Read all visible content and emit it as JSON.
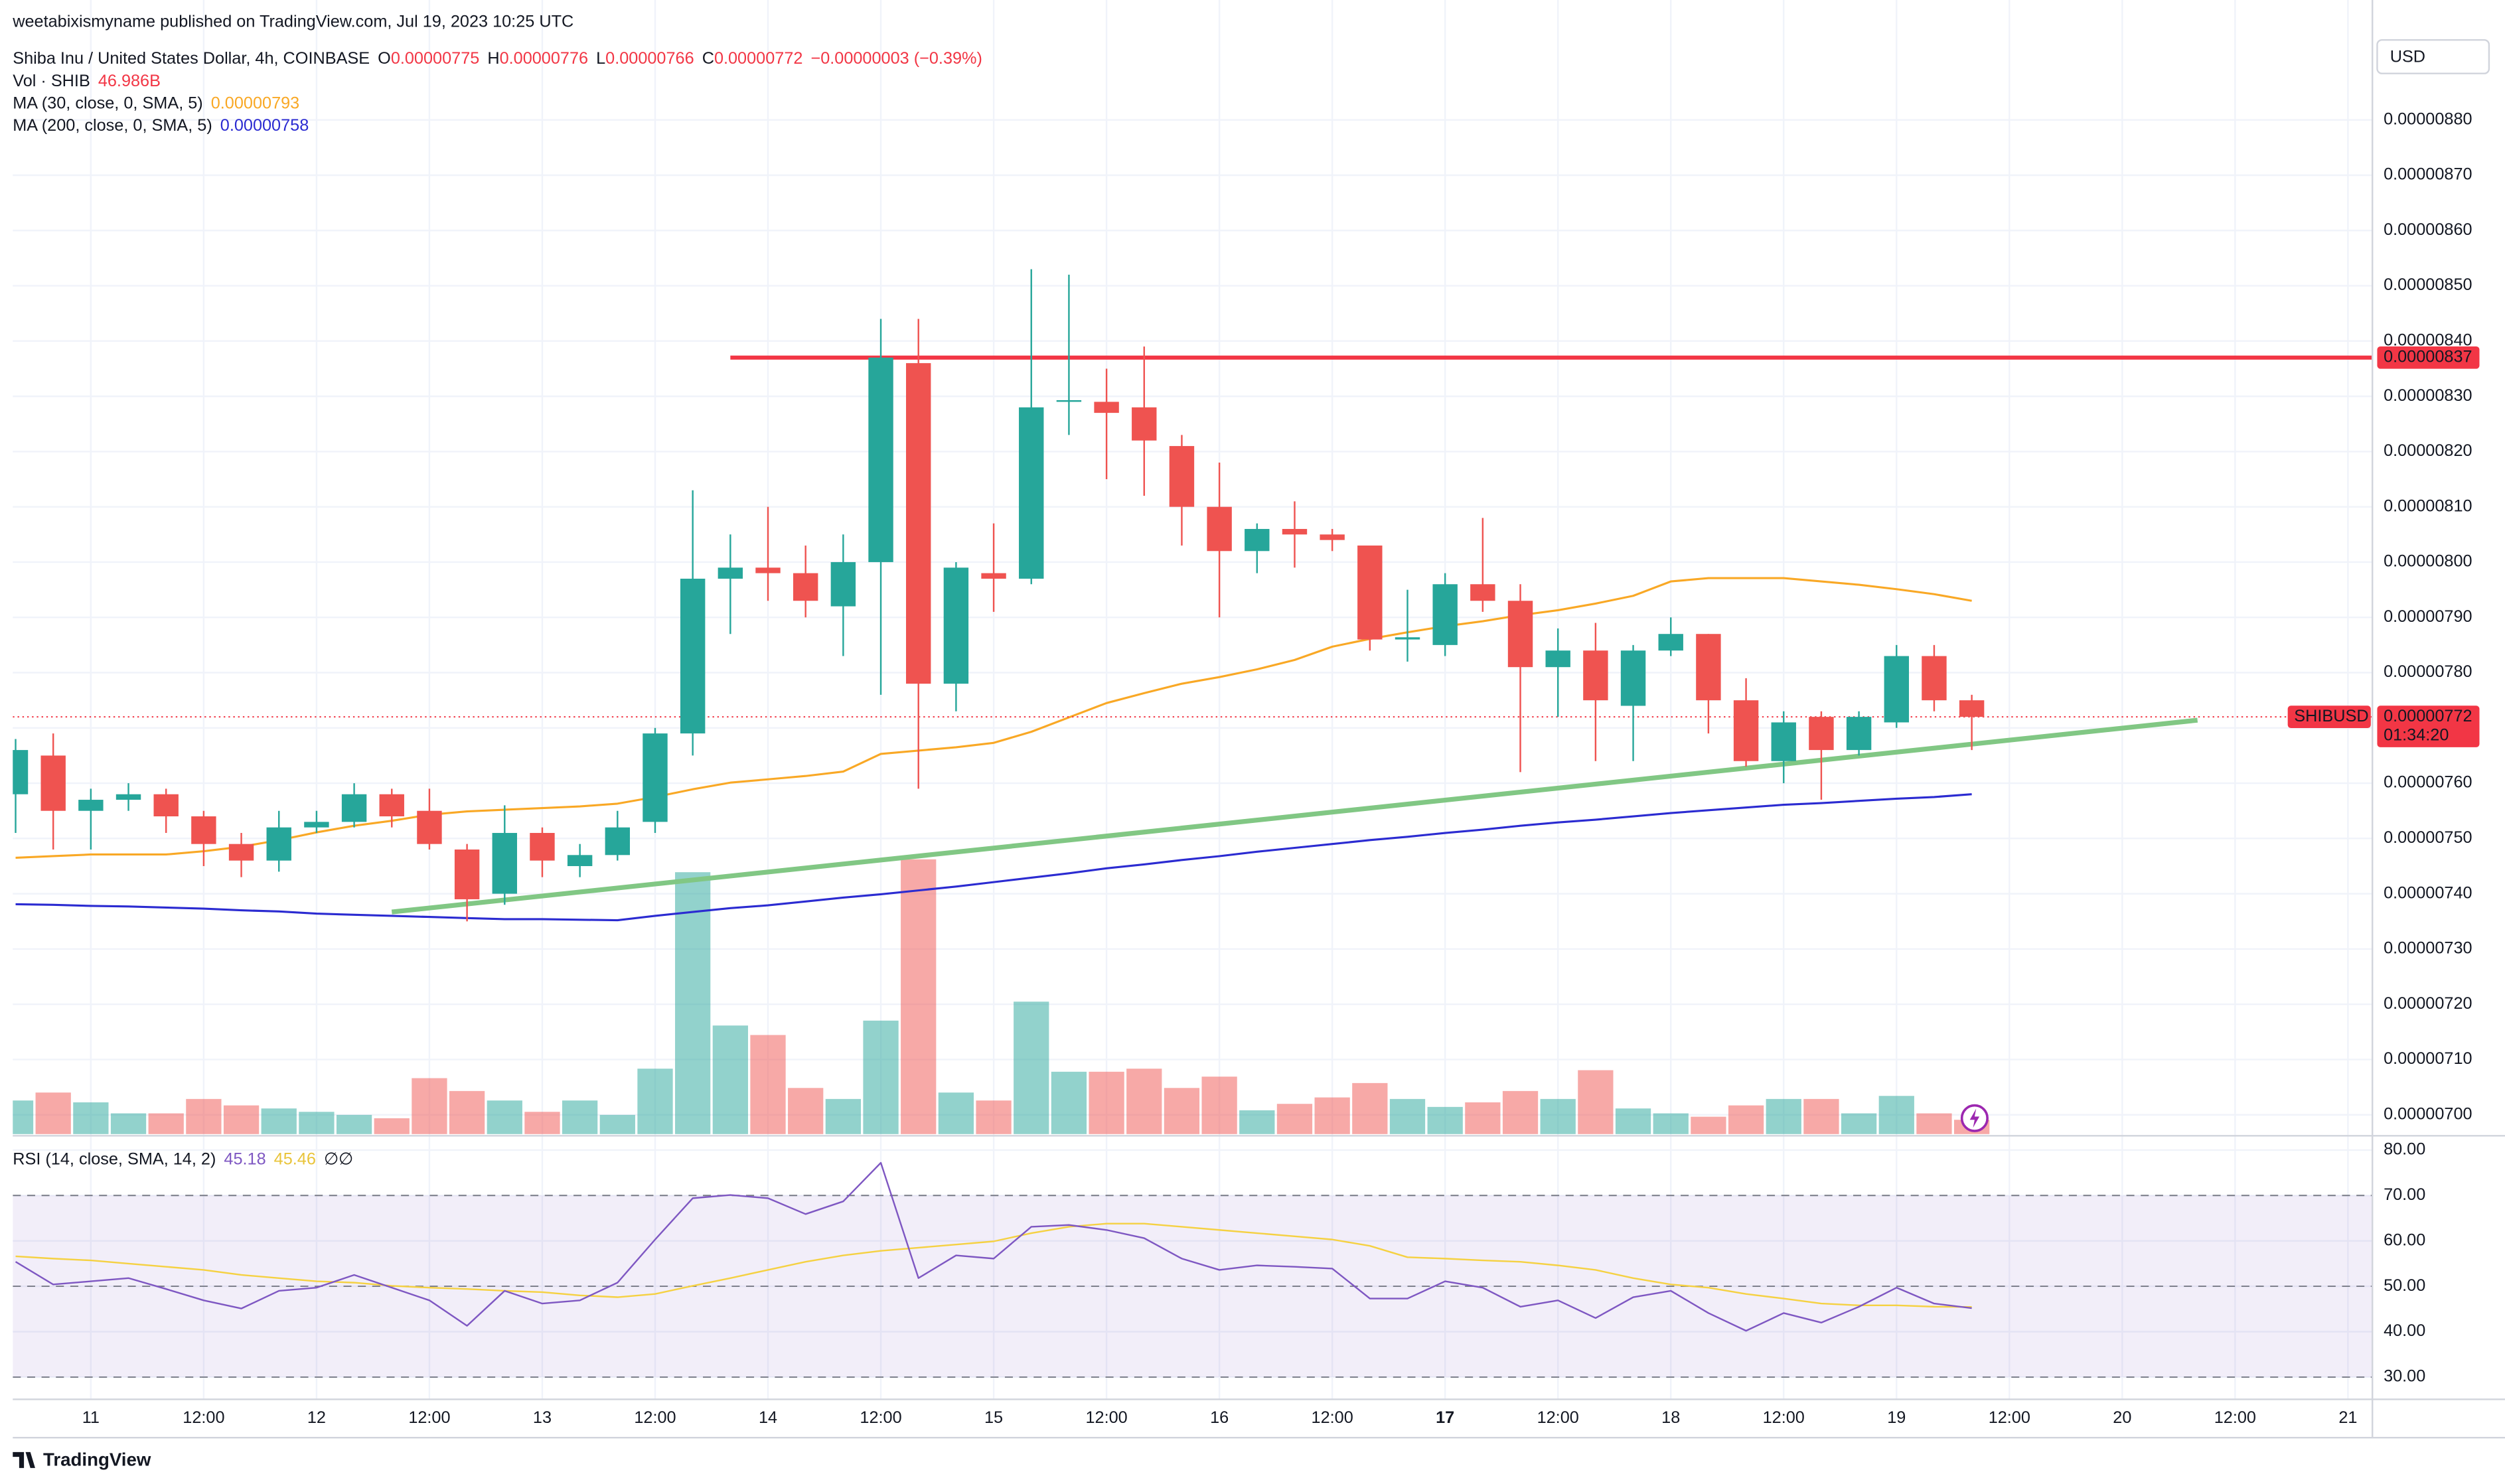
{
  "header": {
    "published": "weetabixismyname published on TradingView.com, Jul 19, 2023 10:25 UTC",
    "currency": "USD",
    "logo": "TradingView"
  },
  "chart_data": {
    "type": "candlestick",
    "legend": [
      [
        {
          "text": "Shiba Inu / United States Dollar, 4h, COINBASE",
          "color": "#131722"
        },
        {
          "text": "O",
          "color": "#131722"
        },
        {
          "text": "0.00000775",
          "color": "#f23645"
        },
        {
          "text": "H",
          "color": "#131722"
        },
        {
          "text": "0.00000776",
          "color": "#f23645"
        },
        {
          "text": "L",
          "color": "#131722"
        },
        {
          "text": "0.00000766",
          "color": "#f23645"
        },
        {
          "text": "C",
          "color": "#131722"
        },
        {
          "text": "0.00000772",
          "color": "#f23645"
        },
        {
          "text": "−0.00000003 (−0.39%)",
          "color": "#f23645"
        }
      ],
      [
        {
          "text": "Vol · SHIB",
          "color": "#131722"
        },
        {
          "text": "46.986B",
          "color": "#f23645"
        }
      ],
      [
        {
          "text": "MA (30, close, 0, SMA, 5)",
          "color": "#131722"
        },
        {
          "text": "0.00000793",
          "color": "#f9a825"
        }
      ],
      [
        {
          "text": "MA (200, close, 0, SMA, 5)",
          "color": "#131722"
        },
        {
          "text": "0.00000758",
          "color": "#2b2bd1"
        }
      ]
    ],
    "x": [
      -8,
      -4,
      0,
      4,
      8,
      12,
      16,
      20,
      24,
      28,
      32,
      36,
      40,
      44,
      48,
      52,
      56,
      60,
      64,
      68,
      72,
      76,
      80,
      84,
      88,
      92,
      96,
      100,
      104,
      108,
      112,
      116,
      120,
      124,
      128,
      132,
      136,
      140,
      144,
      148,
      152,
      156,
      160,
      164,
      168,
      172,
      176,
      180,
      184,
      188,
      192,
      196,
      200
    ],
    "open": [
      7.58e-06,
      7.65e-06,
      7.55e-06,
      7.57e-06,
      7.58e-06,
      7.54e-06,
      7.49e-06,
      7.46e-06,
      7.52e-06,
      7.53e-06,
      7.58e-06,
      7.55e-06,
      7.48e-06,
      7.4e-06,
      7.51e-06,
      7.45e-06,
      7.47e-06,
      7.53e-06,
      7.69e-06,
      7.97e-06,
      7.99e-06,
      7.98e-06,
      7.92e-06,
      8e-06,
      8.36e-06,
      7.78e-06,
      7.98e-06,
      7.97e-06,
      8.29e-06,
      8.29e-06,
      8.28e-06,
      8.21e-06,
      8.1e-06,
      8.02e-06,
      8.06e-06,
      8.05e-06,
      8.03e-06,
      7.86e-06,
      7.85e-06,
      7.96e-06,
      7.93e-06,
      7.81e-06,
      7.84e-06,
      7.74e-06,
      7.84e-06,
      7.87e-06,
      7.75e-06,
      7.64e-06,
      7.72e-06,
      7.66e-06,
      7.71e-06,
      7.83e-06,
      7.75e-06
    ],
    "high": [
      7.68e-06,
      7.69e-06,
      7.59e-06,
      7.6e-06,
      7.59e-06,
      7.55e-06,
      7.51e-06,
      7.55e-06,
      7.55e-06,
      7.6e-06,
      7.59e-06,
      7.59e-06,
      7.49e-06,
      7.56e-06,
      7.52e-06,
      7.49e-06,
      7.55e-06,
      7.7e-06,
      8.13e-06,
      8.05e-06,
      8.1e-06,
      8.03e-06,
      8.05e-06,
      8.44e-06,
      8.44e-06,
      8e-06,
      8.07e-06,
      8.53e-06,
      8.52e-06,
      8.35e-06,
      8.39e-06,
      8.23e-06,
      8.18e-06,
      8.07e-06,
      8.11e-06,
      8.06e-06,
      8.03e-06,
      7.95e-06,
      7.98e-06,
      8.08e-06,
      7.96e-06,
      7.88e-06,
      7.89e-06,
      7.85e-06,
      7.9e-06,
      7.87e-06,
      7.79e-06,
      7.73e-06,
      7.73e-06,
      7.73e-06,
      7.85e-06,
      7.85e-06,
      7.76e-06
    ],
    "low": [
      7.51e-06,
      7.48e-06,
      7.48e-06,
      7.55e-06,
      7.51e-06,
      7.45e-06,
      7.43e-06,
      7.44e-06,
      7.51e-06,
      7.52e-06,
      7.52e-06,
      7.48e-06,
      7.35e-06,
      7.38e-06,
      7.43e-06,
      7.43e-06,
      7.46e-06,
      7.51e-06,
      7.65e-06,
      7.87e-06,
      7.93e-06,
      7.9e-06,
      7.83e-06,
      7.76e-06,
      7.59e-06,
      7.73e-06,
      7.91e-06,
      7.96e-06,
      8.23e-06,
      8.15e-06,
      8.12e-06,
      8.03e-06,
      7.9e-06,
      7.98e-06,
      7.99e-06,
      8.02e-06,
      7.84e-06,
      7.82e-06,
      7.83e-06,
      7.91e-06,
      7.62e-06,
      7.72e-06,
      7.64e-06,
      7.64e-06,
      7.83e-06,
      7.69e-06,
      7.63e-06,
      7.6e-06,
      7.57e-06,
      7.65e-06,
      7.7e-06,
      7.73e-06,
      7.66e-06
    ],
    "close": [
      7.66e-06,
      7.55e-06,
      7.57e-06,
      7.58e-06,
      7.54e-06,
      7.49e-06,
      7.46e-06,
      7.52e-06,
      7.53e-06,
      7.58e-06,
      7.54e-06,
      7.49e-06,
      7.39e-06,
      7.51e-06,
      7.46e-06,
      7.47e-06,
      7.52e-06,
      7.69e-06,
      7.97e-06,
      7.99e-06,
      7.98e-06,
      7.93e-06,
      8e-06,
      8.37e-06,
      7.78e-06,
      7.99e-06,
      7.97e-06,
      8.28e-06,
      8.293e-06,
      8.27e-06,
      8.22e-06,
      8.1e-06,
      8.02e-06,
      8.06e-06,
      8.05e-06,
      8.04e-06,
      7.86e-06,
      7.864e-06,
      7.96e-06,
      7.93e-06,
      7.81e-06,
      7.84e-06,
      7.75e-06,
      7.84e-06,
      7.87e-06,
      7.75e-06,
      7.64e-06,
      7.71e-06,
      7.66e-06,
      7.72e-06,
      7.83e-06,
      7.75e-06,
      7.72e-06
    ],
    "volume": [
      110,
      136,
      104,
      68,
      68,
      115,
      94,
      84,
      73,
      63,
      52,
      183,
      141,
      110,
      73,
      110,
      63,
      214,
      856,
      355,
      324,
      151,
      115,
      371,
      898,
      136,
      110,
      433,
      204,
      204,
      214,
      151,
      188,
      78,
      99,
      120,
      167,
      115,
      89,
      104,
      141,
      115,
      209,
      84,
      68,
      57,
      94,
      115,
      115,
      68,
      125,
      68,
      46.986
    ],
    "up_color": "#26a69a",
    "down_color": "#ef5350",
    "volume_colors": {
      "up": "rgba(38,166,154,0.5)",
      "down": "rgba(239,83,80,0.5)"
    },
    "volume_ylim": [
      0,
      3706
    ],
    "ma30": {
      "color": "#f9a825",
      "values": [
        7.465e-06,
        7.468e-06,
        7.471e-06,
        7.471e-06,
        7.471e-06,
        7.477e-06,
        7.485e-06,
        7.497e-06,
        7.511e-06,
        7.523e-06,
        7.532e-06,
        7.543e-06,
        7.549e-06,
        7.552e-06,
        7.555e-06,
        7.558e-06,
        7.563e-06,
        7.575e-06,
        7.589e-06,
        7.601e-06,
        7.607e-06,
        7.613e-06,
        7.621e-06,
        7.653e-06,
        7.659e-06,
        7.665e-06,
        7.673e-06,
        7.693e-06,
        7.719e-06,
        7.745e-06,
        7.763e-06,
        7.78e-06,
        7.792e-06,
        7.806e-06,
        7.823e-06,
        7.847e-06,
        7.861e-06,
        7.873e-06,
        7.884e-06,
        7.893e-06,
        7.904e-06,
        7.913e-06,
        7.925e-06,
        7.939e-06,
        7.965e-06,
        7.971e-06,
        7.971e-06,
        7.971e-06,
        7.965e-06,
        7.959e-06,
        7.951e-06,
        7.942e-06,
        7.93e-06
      ]
    },
    "ma200": {
      "color": "#2b2bd1",
      "values": [
        7.381e-06,
        7.38e-06,
        7.378e-06,
        7.377e-06,
        7.375e-06,
        7.373e-06,
        7.37e-06,
        7.368e-06,
        7.364e-06,
        7.362e-06,
        7.36e-06,
        7.358e-06,
        7.356e-06,
        7.354e-06,
        7.354e-06,
        7.353e-06,
        7.352e-06,
        7.36e-06,
        7.367e-06,
        7.374e-06,
        7.379e-06,
        7.386e-06,
        7.393e-06,
        7.399e-06,
        7.406e-06,
        7.413e-06,
        7.421e-06,
        7.429e-06,
        7.437e-06,
        7.446e-06,
        7.453e-06,
        7.461e-06,
        7.468e-06,
        7.476e-06,
        7.483e-06,
        7.49e-06,
        7.497e-06,
        7.503e-06,
        7.51e-06,
        7.516e-06,
        7.523e-06,
        7.529e-06,
        7.534e-06,
        7.54e-06,
        7.546e-06,
        7.551e-06,
        7.556e-06,
        7.561e-06,
        7.564e-06,
        7.568e-06,
        7.572e-06,
        7.575e-06,
        7.58e-06
      ]
    },
    "trendline": {
      "color": "#81c784",
      "x": [
        32,
        224
      ],
      "y": [
        7.367e-06,
        7.714e-06
      ]
    },
    "resistance": {
      "color": "#f23645",
      "x_start": 68,
      "value": 8.37e-06,
      "label": "0.00000837"
    },
    "last_price": {
      "symbol": "SHIBUSD",
      "label": "0.00000772",
      "countdown": "01:34:20",
      "color": "#f23645"
    },
    "xlim": [
      -8.3,
      242.6
    ],
    "xticks": [
      {
        "value": 0,
        "label": "11"
      },
      {
        "value": 12,
        "label": "12:00"
      },
      {
        "value": 24,
        "label": "12"
      },
      {
        "value": 36,
        "label": "12:00"
      },
      {
        "value": 48,
        "label": "13"
      },
      {
        "value": 60,
        "label": "12:00"
      },
      {
        "value": 72,
        "label": "14"
      },
      {
        "value": 84,
        "label": "12:00"
      },
      {
        "value": 96,
        "label": "15"
      },
      {
        "value": 108,
        "label": "12:00"
      },
      {
        "value": 120,
        "label": "16"
      },
      {
        "value": 132,
        "label": "12:00"
      },
      {
        "value": 144,
        "label": "17",
        "bold": true
      },
      {
        "value": 156,
        "label": "12:00"
      },
      {
        "value": 168,
        "label": "18"
      },
      {
        "value": 180,
        "label": "12:00"
      },
      {
        "value": 192,
        "label": "19"
      },
      {
        "value": 204,
        "label": "12:00"
      },
      {
        "value": 216,
        "label": "20"
      },
      {
        "value": 228,
        "label": "12:00"
      },
      {
        "value": 240,
        "label": "21"
      }
    ],
    "ylim": [
      6.965e-06,
      9.017e-06
    ],
    "yticks": [
      {
        "value": 7e-06,
        "label": "0.00000700"
      },
      {
        "value": 7.1e-06,
        "label": "0.00000710"
      },
      {
        "value": 7.2e-06,
        "label": "0.00000720"
      },
      {
        "value": 7.3e-06,
        "label": "0.00000730"
      },
      {
        "value": 7.4e-06,
        "label": "0.00000740"
      },
      {
        "value": 7.5e-06,
        "label": "0.00000750"
      },
      {
        "value": 7.6e-06,
        "label": "0.00000760"
      },
      {
        "value": 7.7e-06,
        "label": "0.00000770"
      },
      {
        "value": 7.8e-06,
        "label": "0.00000780"
      },
      {
        "value": 7.9e-06,
        "label": "0.00000790"
      },
      {
        "value": 8e-06,
        "label": "0.00000800"
      },
      {
        "value": 8.1e-06,
        "label": "0.00000810"
      },
      {
        "value": 8.2e-06,
        "label": "0.00000820"
      },
      {
        "value": 8.3e-06,
        "label": "0.00000830"
      },
      {
        "value": 8.4e-06,
        "label": "0.00000840"
      },
      {
        "value": 8.5e-06,
        "label": "0.00000850"
      },
      {
        "value": 8.6e-06,
        "label": "0.00000860"
      },
      {
        "value": 8.7e-06,
        "label": "0.00000870"
      },
      {
        "value": 8.8e-06,
        "label": "0.00000880"
      }
    ],
    "grid": true,
    "rsi": {
      "legend": [
        {
          "text": "RSI (14, close, SMA, 14, 2)",
          "color": "#131722"
        },
        {
          "text": "45.18",
          "color": "#7e57c2"
        },
        {
          "text": "45.46",
          "color": "#e9c43a"
        },
        {
          "text": "∅",
          "color": "#131722"
        },
        {
          "text": "∅",
          "color": "#131722"
        }
      ],
      "ylim": [
        25.1,
        82.8
      ],
      "yticks": [
        {
          "value": 80,
          "label": "80.00"
        },
        {
          "value": 70,
          "label": "70.00"
        },
        {
          "value": 60,
          "label": "60.00"
        },
        {
          "value": 50,
          "label": "50.00"
        },
        {
          "value": 40,
          "label": "40.00"
        },
        {
          "value": 30,
          "label": "30.00"
        }
      ],
      "band": [
        30,
        70
      ],
      "band_color": "rgba(126,87,194,0.1)",
      "levels": [
        70,
        50,
        30
      ],
      "color": "#7e57c2",
      "values": [
        55.4,
        50.4,
        51.1,
        51.8,
        49.4,
        46.9,
        45.1,
        49.0,
        49.7,
        52.5,
        49.7,
        46.9,
        41.3,
        49.0,
        46.2,
        46.9,
        50.8,
        60.3,
        69.4,
        70.1,
        69.4,
        65.9,
        68.7,
        77.2,
        51.8,
        56.8,
        56.1,
        63.1,
        63.5,
        62.4,
        60.6,
        56.1,
        53.6,
        54.6,
        54.3,
        53.9,
        47.3,
        47.3,
        51.1,
        49.7,
        45.5,
        46.9,
        43.0,
        47.6,
        49.0,
        44.1,
        40.2,
        44.1,
        42.0,
        45.5,
        49.7,
        46.2,
        45.18
      ],
      "sma": {
        "color": "#f5d142",
        "values": [
          56.6,
          56.1,
          55.7,
          55.0,
          54.3,
          53.6,
          52.5,
          51.8,
          51.1,
          50.8,
          50.1,
          49.7,
          49.4,
          49.0,
          48.7,
          48.0,
          47.6,
          48.3,
          50.1,
          51.8,
          53.6,
          55.4,
          56.8,
          57.8,
          58.5,
          59.2,
          59.9,
          61.7,
          63.1,
          63.8,
          63.8,
          63.1,
          62.4,
          61.7,
          61.0,
          60.3,
          58.9,
          56.4,
          56.1,
          55.7,
          55.4,
          54.6,
          53.6,
          51.8,
          50.4,
          49.7,
          48.3,
          47.3,
          46.2,
          45.8,
          45.8,
          45.5,
          45.46
        ]
      }
    }
  }
}
